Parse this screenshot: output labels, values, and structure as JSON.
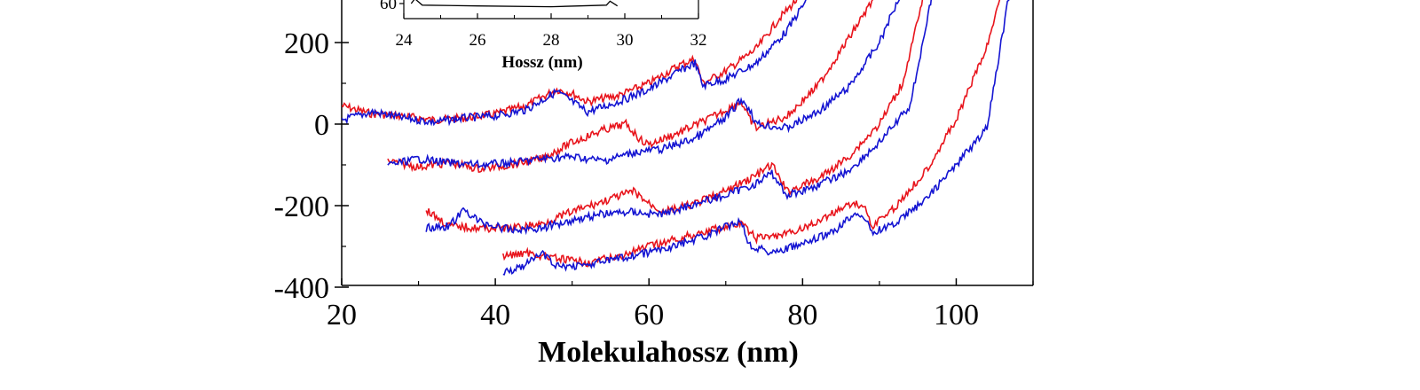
{
  "chart_data": [
    {
      "type": "line",
      "title": "",
      "xlabel": "Molekulahossz (nm)",
      "ylabel": "",
      "xlim": [
        20,
        110
      ],
      "ylim": [
        -400,
        400
      ],
      "x_ticks": [
        20,
        40,
        60,
        80,
        100
      ],
      "x_tick_labels": [
        "20",
        "40",
        "60",
        "80",
        "100"
      ],
      "y_ticks": [
        -400,
        -200,
        0,
        200
      ],
      "y_tick_labels": [
        "-400",
        "-200",
        "0",
        "200"
      ],
      "grid": false,
      "legend": "none",
      "colors": {
        "red": "#e8141c",
        "blue": "#1414d2"
      },
      "series": [
        {
          "color": "red",
          "group": 1,
          "x": [
            20,
            24,
            28,
            32,
            36,
            40,
            44,
            48,
            50,
            52,
            56,
            60,
            64,
            66,
            67,
            70,
            74,
            77,
            80
          ],
          "y": [
            45,
            25,
            20,
            10,
            15,
            25,
            45,
            85,
            75,
            55,
            70,
            100,
            145,
            160,
            100,
            130,
            185,
            260,
            320
          ]
        },
        {
          "color": "blue",
          "group": 1,
          "x": [
            20,
            24,
            28,
            32,
            36,
            40,
            44,
            48,
            50,
            52,
            56,
            60,
            64,
            66,
            67,
            70,
            74,
            78,
            81
          ],
          "y": [
            10,
            30,
            15,
            5,
            15,
            20,
            35,
            80,
            55,
            30,
            55,
            85,
            130,
            150,
            95,
            110,
            150,
            230,
            320
          ]
        },
        {
          "color": "red",
          "group": 2,
          "x": [
            26,
            30,
            34,
            38,
            42,
            46,
            50,
            54,
            57,
            59,
            60,
            64,
            68,
            72,
            73,
            74,
            78,
            82,
            86,
            90
          ],
          "y": [
            -90,
            -105,
            -95,
            -110,
            -100,
            -85,
            -45,
            -15,
            0,
            -40,
            -50,
            -20,
            15,
            55,
            15,
            -10,
            20,
            95,
            210,
            330
          ]
        },
        {
          "color": "blue",
          "group": 2,
          "x": [
            26,
            30,
            34,
            38,
            42,
            46,
            50,
            54,
            58,
            62,
            66,
            70,
            72,
            73,
            74,
            78,
            82,
            86,
            90,
            93
          ],
          "y": [
            -100,
            -85,
            -95,
            -100,
            -95,
            -85,
            -80,
            -90,
            -70,
            -60,
            -35,
            15,
            60,
            40,
            0,
            -10,
            30,
            90,
            200,
            330
          ]
        },
        {
          "color": "red",
          "group": 3,
          "x": [
            31,
            34,
            38,
            42,
            46,
            50,
            54,
            58,
            60,
            62,
            64,
            66,
            70,
            74,
            76,
            78,
            82,
            86,
            90,
            93,
            96
          ],
          "y": [
            -210,
            -250,
            -255,
            -255,
            -245,
            -215,
            -190,
            -165,
            -195,
            -215,
            -205,
            -195,
            -165,
            -125,
            -100,
            -165,
            -135,
            -80,
            0,
            100,
            330
          ]
        },
        {
          "color": "blue",
          "group": 3,
          "x": [
            31,
            34,
            36,
            38,
            42,
            46,
            50,
            54,
            58,
            60,
            62,
            66,
            70,
            74,
            76,
            78,
            82,
            86,
            90,
            94,
            97
          ],
          "y": [
            -255,
            -250,
            -210,
            -240,
            -260,
            -255,
            -235,
            -220,
            -215,
            -220,
            -220,
            -195,
            -175,
            -145,
            -120,
            -175,
            -150,
            -115,
            -45,
            45,
            330
          ]
        },
        {
          "color": "red",
          "group": 4,
          "x": [
            41,
            44,
            48,
            52,
            56,
            60,
            64,
            68,
            72,
            74,
            78,
            82,
            86,
            88,
            89,
            92,
            96,
            100,
            104,
            106
          ],
          "y": [
            -325,
            -315,
            -330,
            -340,
            -325,
            -300,
            -280,
            -260,
            -245,
            -280,
            -270,
            -240,
            -195,
            -200,
            -250,
            -205,
            -115,
            10,
            190,
            330
          ]
        },
        {
          "color": "blue",
          "group": 4,
          "x": [
            41,
            44,
            46,
            48,
            52,
            56,
            60,
            64,
            68,
            72,
            73,
            76,
            80,
            84,
            87,
            88,
            89,
            92,
            96,
            100,
            104,
            107
          ],
          "y": [
            -365,
            -345,
            -315,
            -350,
            -345,
            -330,
            -315,
            -295,
            -270,
            -235,
            -295,
            -315,
            -295,
            -265,
            -215,
            -230,
            -265,
            -245,
            -185,
            -100,
            -10,
            330
          ]
        }
      ]
    },
    {
      "type": "line",
      "title": "",
      "xlabel": "Hossz (nm)",
      "ylabel": "",
      "xlim": [
        24,
        32
      ],
      "x_ticks": [
        24,
        26,
        28,
        30,
        32
      ],
      "x_tick_labels": [
        "24",
        "26",
        "28",
        "30",
        "32"
      ],
      "y_ticks": [
        60
      ],
      "y_tick_labels": [
        "60"
      ],
      "grid": false,
      "legend": "none",
      "series": [
        {
          "color": "black",
          "x": [
            24.2,
            24.3,
            24.5,
            26,
            28,
            29.5,
            29.6,
            29.8
          ],
          "y": [
            60,
            66,
            58,
            57,
            56,
            58,
            63,
            57
          ]
        }
      ]
    }
  ]
}
